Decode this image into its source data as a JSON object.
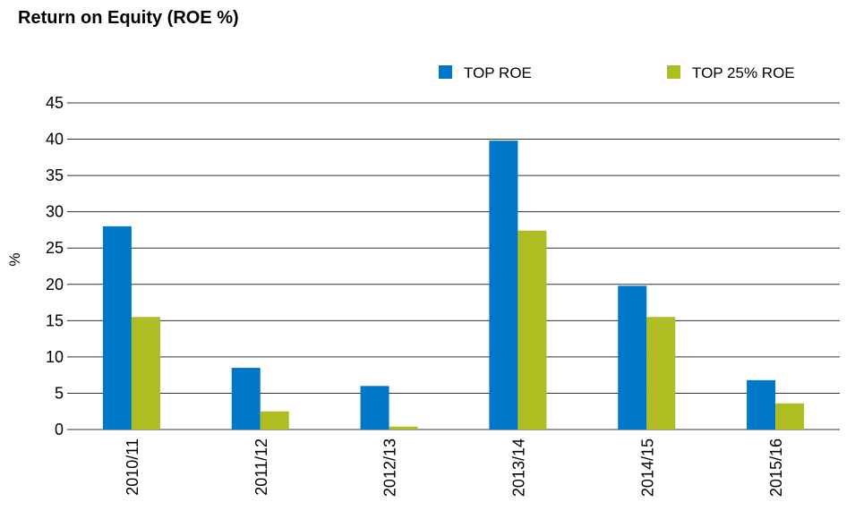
{
  "chart_data": {
    "type": "bar",
    "title": "Return on Equity (ROE %)",
    "xlabel": "",
    "ylabel": "%",
    "categories": [
      "2010/11",
      "2011/12",
      "2012/13",
      "2013/14",
      "2014/15",
      "2015/16"
    ],
    "series": [
      {
        "name": "TOP ROE",
        "color": "#0077c8",
        "values": [
          28,
          8.5,
          6,
          39.8,
          19.8,
          6.8
        ]
      },
      {
        "name": "TOP 25% ROE",
        "color": "#afbd22",
        "values": [
          15.5,
          2.5,
          0.4,
          27.4,
          15.5,
          3.6
        ]
      }
    ],
    "ylim": [
      0,
      45
    ],
    "yticks": [
      0,
      5,
      10,
      15,
      20,
      25,
      30,
      35,
      40,
      45
    ],
    "grid": true,
    "legend": "top-right"
  }
}
